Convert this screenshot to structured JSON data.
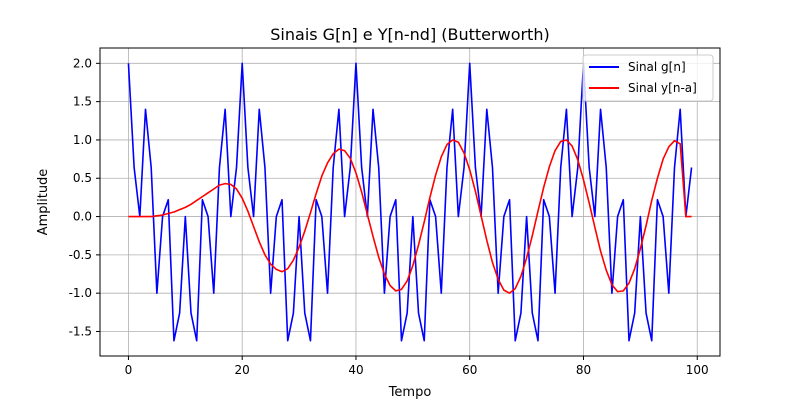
{
  "chart_data": {
    "type": "line",
    "title": "Sinais G[n] e Y[n-nd] (Butterworth)",
    "xlabel": "Tempo",
    "ylabel": "Amplitude",
    "xlim": [
      -5,
      104
    ],
    "ylim": [
      -1.82,
      2.2
    ],
    "xticks": [
      0,
      20,
      40,
      60,
      80,
      100
    ],
    "yticks": [
      -1.5,
      -1.0,
      -0.5,
      0.0,
      0.5,
      1.0,
      1.5,
      2.0
    ],
    "grid": true,
    "legend_position": "top-right",
    "series": [
      {
        "name": "Sinal g[n]",
        "color": "#0000ff",
        "x": [
          0,
          1,
          2,
          3,
          4,
          5,
          6,
          7,
          8,
          9,
          10,
          11,
          12,
          13,
          14,
          15,
          16,
          17,
          18,
          19,
          20,
          21,
          22,
          23,
          24,
          25,
          26,
          27,
          28,
          29,
          30,
          31,
          32,
          33,
          34,
          35,
          36,
          37,
          38,
          39,
          40,
          41,
          42,
          43,
          44,
          45,
          46,
          47,
          48,
          49,
          50,
          51,
          52,
          53,
          54,
          55,
          56,
          57,
          58,
          59,
          60,
          61,
          62,
          63,
          64,
          65,
          66,
          67,
          68,
          69,
          70,
          71,
          72,
          73,
          74,
          75,
          76,
          77,
          78,
          79,
          80,
          81,
          82,
          83,
          84,
          85,
          86,
          87,
          88,
          89,
          90,
          91,
          92,
          93,
          94,
          95,
          96,
          97,
          98,
          99
        ],
        "values": [
          2.0,
          0.64,
          0.0,
          1.4,
          0.64,
          -1.0,
          0.0,
          0.22,
          -1.62,
          -1.26,
          0.0,
          -1.26,
          -1.62,
          0.22,
          0.0,
          -1.0,
          0.64,
          1.4,
          0.0,
          0.64,
          2.0,
          0.64,
          0.0,
          1.4,
          0.64,
          -1.0,
          0.0,
          0.22,
          -1.62,
          -1.26,
          0.0,
          -1.26,
          -1.62,
          0.22,
          0.0,
          -1.0,
          0.64,
          1.4,
          0.0,
          0.64,
          2.0,
          0.64,
          0.0,
          1.4,
          0.64,
          -1.0,
          0.0,
          0.22,
          -1.62,
          -1.26,
          0.0,
          -1.26,
          -1.62,
          0.22,
          0.0,
          -1.0,
          0.64,
          1.4,
          0.0,
          0.64,
          2.0,
          0.64,
          0.0,
          1.4,
          0.64,
          -1.0,
          0.0,
          0.22,
          -1.62,
          -1.26,
          0.0,
          -1.26,
          -1.62,
          0.22,
          0.0,
          -1.0,
          0.64,
          1.4,
          0.0,
          0.64,
          2.0,
          0.64,
          0.0,
          1.4,
          0.64,
          -1.0,
          0.0,
          0.22,
          -1.62,
          -1.26,
          0.0,
          -1.26,
          -1.62,
          0.22,
          0.0,
          -1.0,
          0.64,
          1.4,
          0.0,
          0.64
        ]
      },
      {
        "name": "Sinal y[n-a]",
        "color": "#ff0000",
        "x": [
          0,
          1,
          2,
          3,
          4,
          5,
          6,
          7,
          8,
          9,
          10,
          11,
          12,
          13,
          14,
          15,
          16,
          17,
          18,
          19,
          20,
          21,
          22,
          23,
          24,
          25,
          26,
          27,
          28,
          29,
          30,
          31,
          32,
          33,
          34,
          35,
          36,
          37,
          38,
          39,
          40,
          41,
          42,
          43,
          44,
          45,
          46,
          47,
          48,
          49,
          50,
          51,
          52,
          53,
          54,
          55,
          56,
          57,
          58,
          59,
          60,
          61,
          62,
          63,
          64,
          65,
          66,
          67,
          68,
          69,
          70,
          71,
          72,
          73,
          74,
          75,
          76,
          77,
          78,
          79,
          80,
          81,
          82,
          83,
          84,
          85,
          86,
          87,
          88,
          89,
          90,
          91,
          92,
          93,
          94,
          95,
          96,
          97,
          98,
          99
        ],
        "values": [
          0.0,
          0.0,
          0.0,
          0.0,
          0.0,
          0.01,
          0.02,
          0.04,
          0.06,
          0.09,
          0.12,
          0.16,
          0.21,
          0.26,
          0.31,
          0.36,
          0.41,
          0.43,
          0.42,
          0.36,
          0.24,
          0.07,
          -0.13,
          -0.33,
          -0.5,
          -0.62,
          -0.69,
          -0.72,
          -0.68,
          -0.57,
          -0.4,
          -0.19,
          0.05,
          0.3,
          0.53,
          0.7,
          0.82,
          0.88,
          0.86,
          0.76,
          0.57,
          0.32,
          0.03,
          -0.26,
          -0.53,
          -0.75,
          -0.9,
          -0.97,
          -0.95,
          -0.84,
          -0.64,
          -0.37,
          -0.07,
          0.25,
          0.54,
          0.78,
          0.94,
          1.0,
          0.97,
          0.83,
          0.61,
          0.33,
          0.01,
          -0.31,
          -0.6,
          -0.82,
          -0.96,
          -1.0,
          -0.94,
          -0.78,
          -0.54,
          -0.25,
          0.07,
          0.38,
          0.65,
          0.86,
          0.98,
          1.0,
          0.92,
          0.74,
          0.48,
          0.18,
          -0.14,
          -0.45,
          -0.7,
          -0.89,
          -0.98,
          -0.97,
          -0.87,
          -0.68,
          -0.42,
          -0.12,
          0.21,
          0.5,
          0.75,
          0.91,
          0.99,
          0.95,
          0.0,
          0.0
        ]
      }
    ]
  }
}
